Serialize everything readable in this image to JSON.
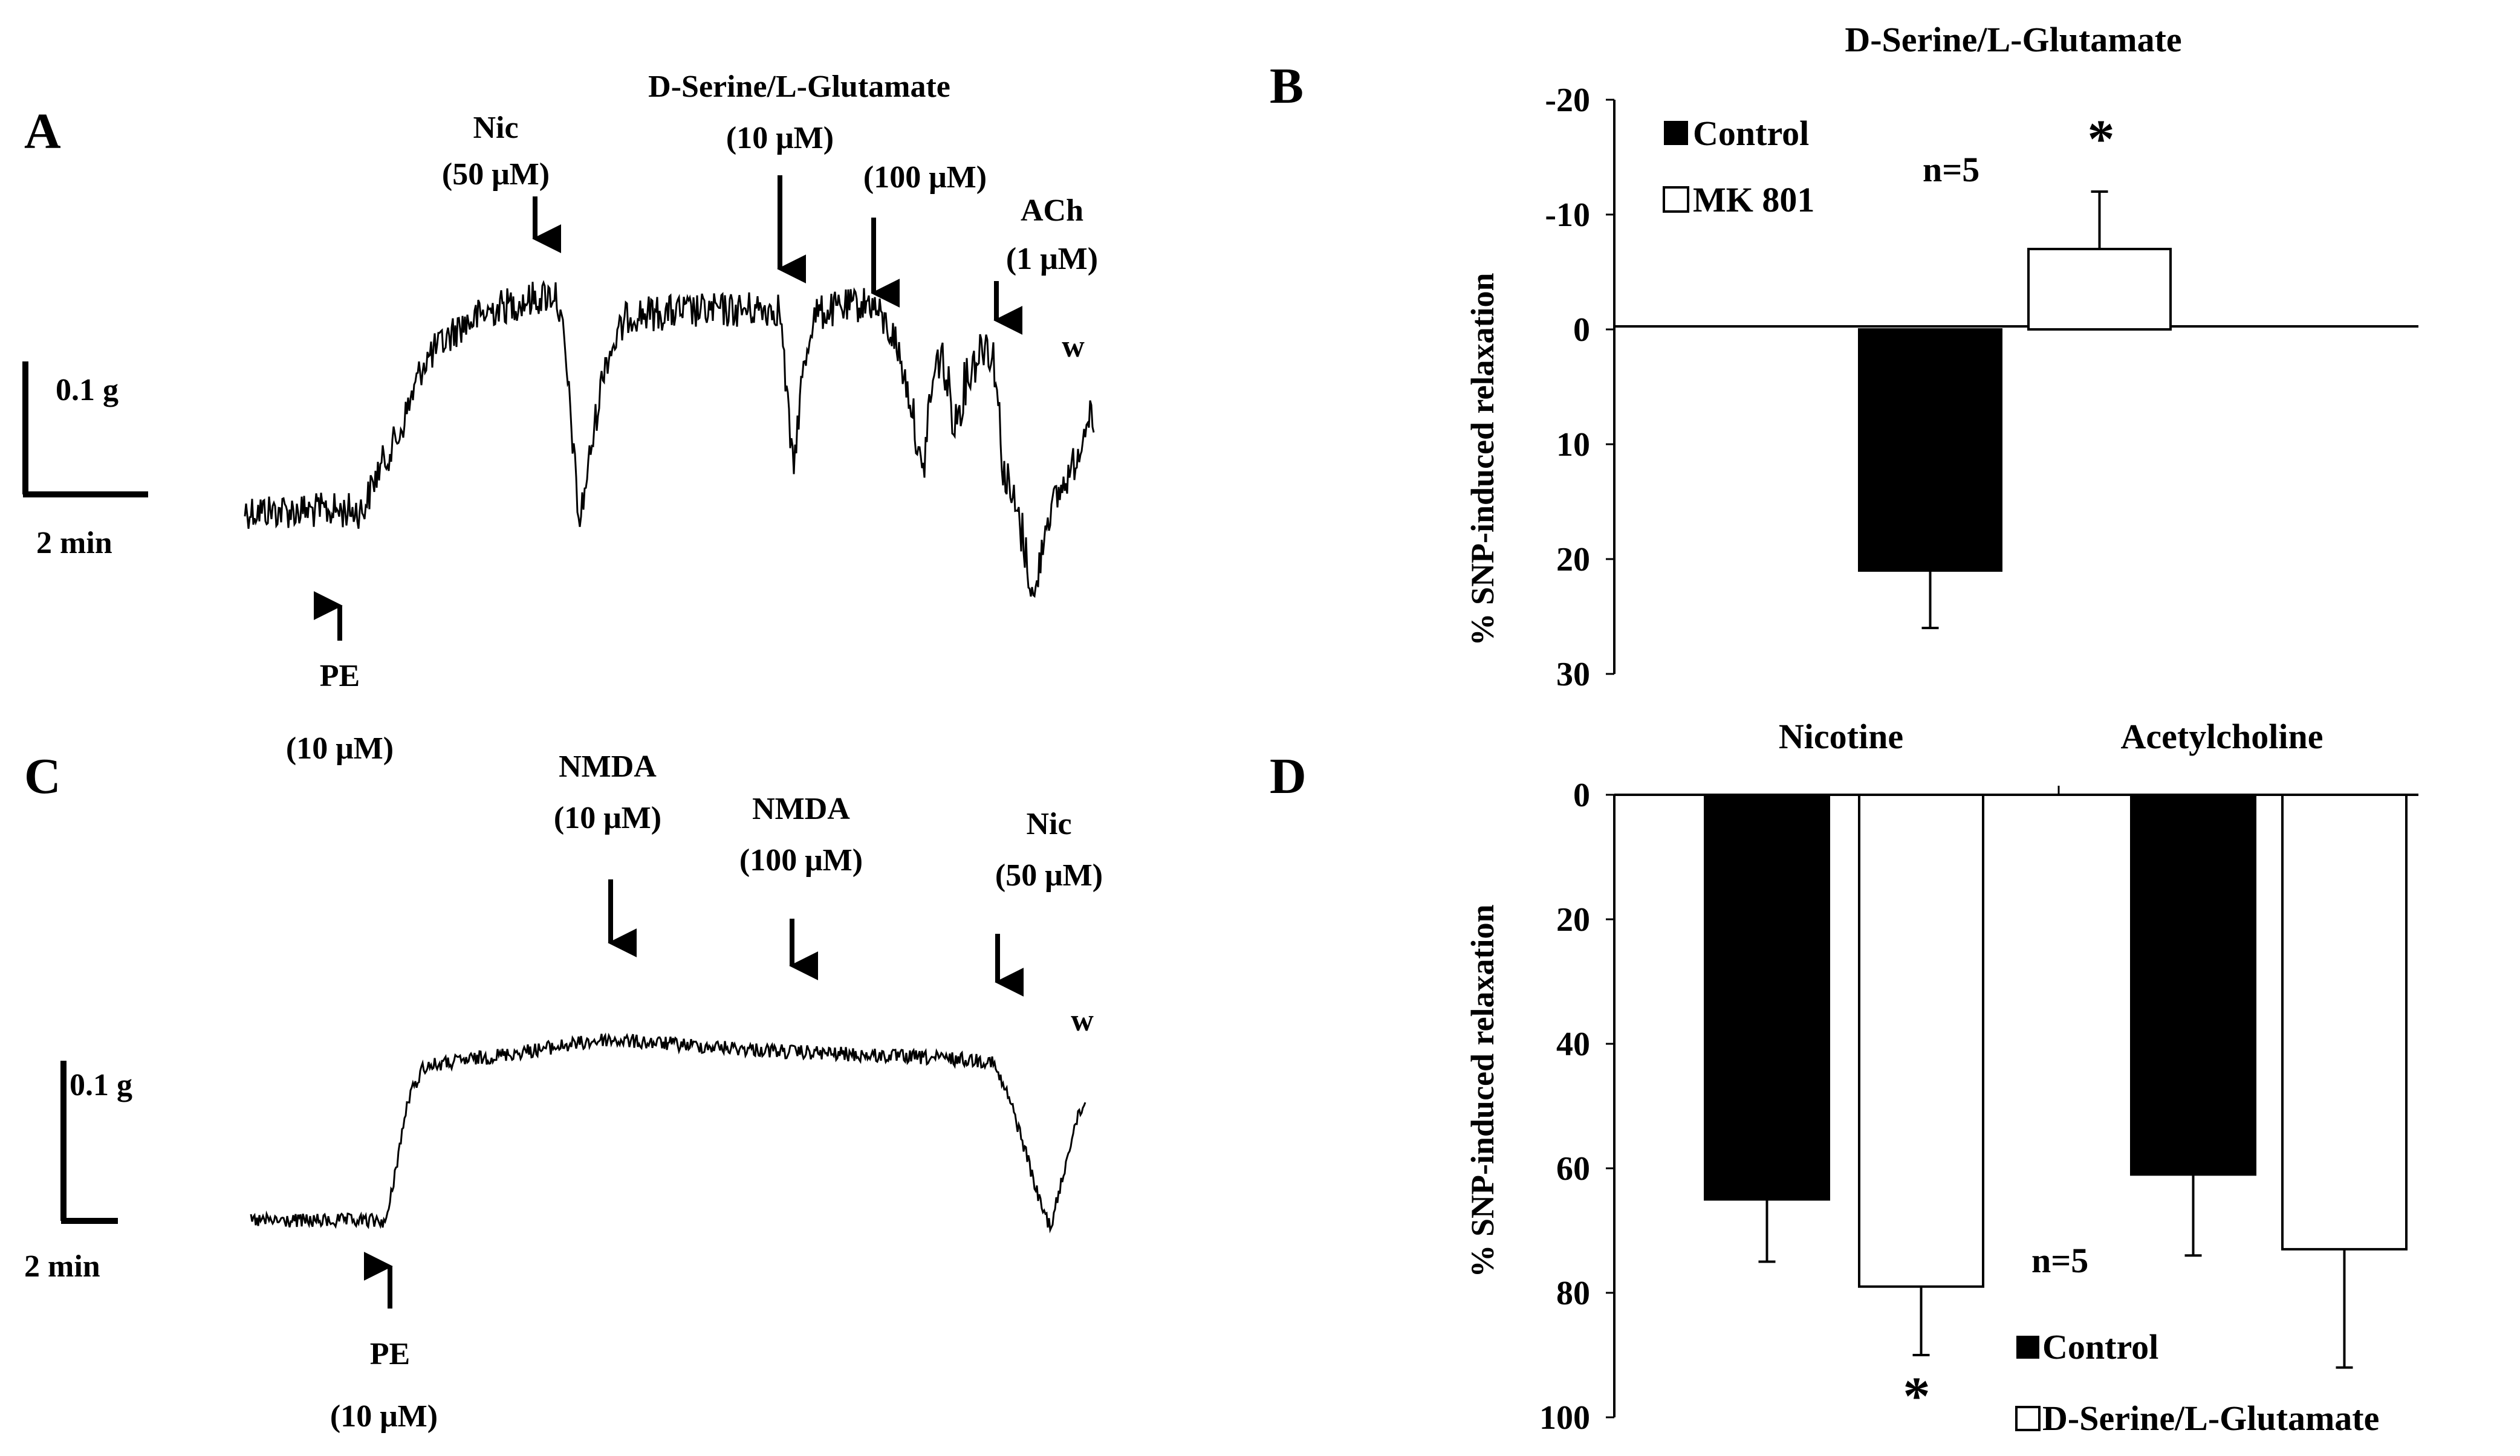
{
  "panels": {
    "A": {
      "letter": "A",
      "scale_force": "0.1 g",
      "scale_time": "2 min",
      "annotations": {
        "pe_name": "PE",
        "pe_conc": "(10 μM)",
        "nic_name": "Nic",
        "nic_conc": "(50 μM)",
        "ds_name": "D-Serine/L-Glutamate",
        "ds_conc1": "(10 μM)",
        "ds_conc2": "(100 μM)",
        "ach_name": "ACh",
        "ach_conc": "(1 μM)",
        "wash": "w"
      }
    },
    "C": {
      "letter": "C",
      "scale_force": "0.1 g",
      "scale_time": "2 min",
      "annotations": {
        "pe_name": "PE",
        "pe_conc": "(10 μM)",
        "nmda1_name": "NMDA",
        "nmda1_conc": "(10 μM)",
        "nmda2_name": "NMDA",
        "nmda2_conc": "(100 μM)",
        "nic_name": "Nic",
        "nic_conc": "(50 μM)",
        "wash": "w"
      }
    }
  },
  "colors": {
    "control": "#000000",
    "treatment": "#ffffff",
    "trace": "#000000"
  },
  "chart_data": [
    {
      "panel": "B",
      "type": "bar",
      "title": "D-Serine/L-Glutamate",
      "ylabel": "% SNP-induced relaxation",
      "y_inverted": true,
      "ylim": [
        -20,
        30
      ],
      "yticks": [
        "-20",
        "-10",
        "0",
        "10",
        "20",
        "30"
      ],
      "legend": [
        "Control",
        "MK 801"
      ],
      "n_label": "n=5",
      "significance": "*",
      "series": [
        {
          "name": "Control",
          "values": [
            21
          ],
          "errors": [
            5
          ]
        },
        {
          "name": "MK 801",
          "values": [
            -7
          ],
          "errors": [
            5
          ]
        }
      ]
    },
    {
      "panel": "D",
      "type": "bar",
      "categories": [
        "Nicotine",
        "Acetylcholine"
      ],
      "ylabel": "% SNP-induced relaxation",
      "y_inverted": true,
      "ylim": [
        0,
        100
      ],
      "yticks": [
        "0",
        "20",
        "40",
        "60",
        "80",
        "100"
      ],
      "legend": [
        "Control",
        "D-Serine/L-Glutamate"
      ],
      "n_label": "n=5",
      "significance": "*",
      "series": [
        {
          "name": "Control",
          "values": [
            65,
            61
          ],
          "errors": [
            10,
            13
          ]
        },
        {
          "name": "D-Serine/L-Glutamate",
          "values": [
            79,
            73
          ],
          "errors": [
            11,
            19
          ]
        }
      ]
    }
  ]
}
